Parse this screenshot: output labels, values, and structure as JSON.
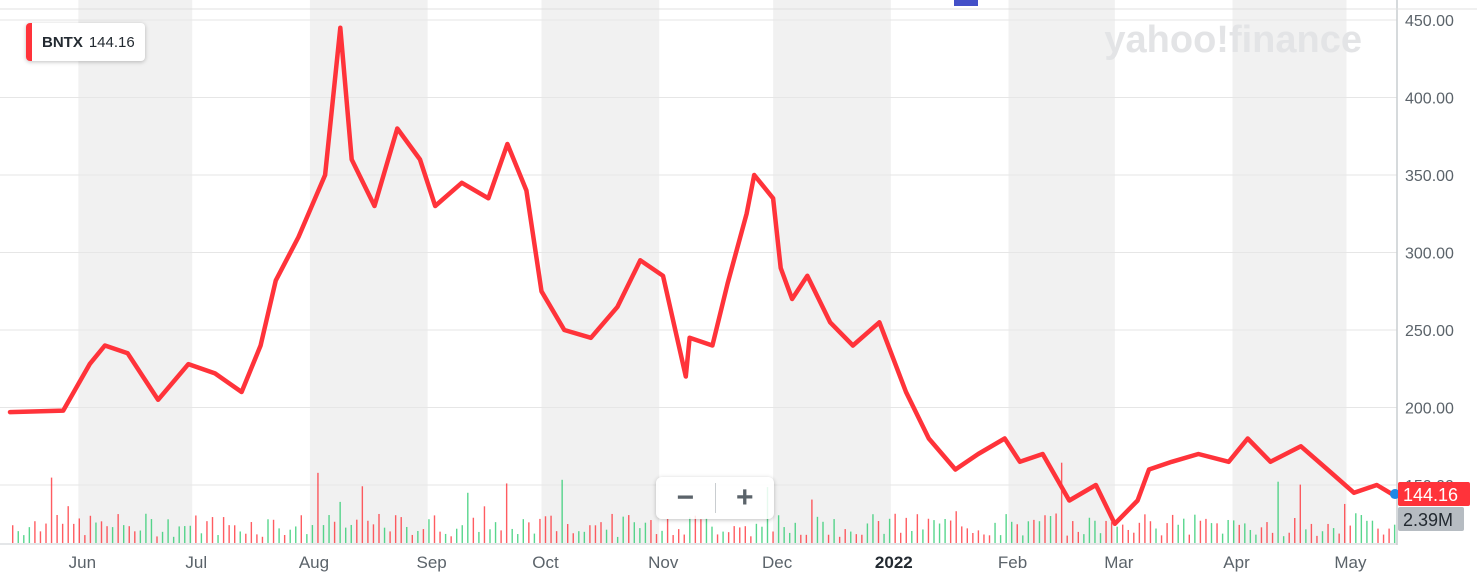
{
  "legend": {
    "ticker": "BNTX",
    "price": "144.16"
  },
  "watermark": "yahoo!finance",
  "zoom": {
    "minus": "−",
    "plus": "+"
  },
  "colors": {
    "line": "#ff333a",
    "up": "#2ecc71",
    "down": "#ff333a",
    "band": "#f1f1f1",
    "grid": "#e6e6e6"
  },
  "chart_data": {
    "type": "line",
    "series": [
      {
        "name": "BNTX"
      }
    ],
    "ylim": [
      100,
      450
    ],
    "y_ticks": [
      "450.00",
      "400.00",
      "350.00",
      "300.00",
      "250.00",
      "200.00",
      "150.00"
    ],
    "x_ticks": [
      "Jun",
      "Jul",
      "Aug",
      "Sep",
      "Oct",
      "Nov",
      "Dec",
      "2022",
      "Feb",
      "Mar",
      "Apr",
      "May"
    ],
    "last_price_label": "144.16",
    "volume_label": "2.39M",
    "x": [
      "2021-05-14",
      "2021-05-28",
      "2021-06-04",
      "2021-06-08",
      "2021-06-14",
      "2021-06-22",
      "2021-06-30",
      "2021-07-07",
      "2021-07-14",
      "2021-07-19",
      "2021-07-23",
      "2021-07-29",
      "2021-08-05",
      "2021-08-09",
      "2021-08-12",
      "2021-08-18",
      "2021-08-24",
      "2021-08-30",
      "2021-09-03",
      "2021-09-10",
      "2021-09-17",
      "2021-09-22",
      "2021-09-27",
      "2021-10-01",
      "2021-10-07",
      "2021-10-14",
      "2021-10-21",
      "2021-10-27",
      "2021-11-02",
      "2021-11-08",
      "2021-11-09",
      "2021-11-15",
      "2021-11-19",
      "2021-11-24",
      "2021-11-26",
      "2021-12-01",
      "2021-12-03",
      "2021-12-06",
      "2021-12-10",
      "2021-12-16",
      "2021-12-22",
      "2021-12-29",
      "2022-01-05",
      "2022-01-11",
      "2022-01-18",
      "2022-01-24",
      "2022-01-31",
      "2022-02-04",
      "2022-02-10",
      "2022-02-17",
      "2022-02-24",
      "2022-03-01",
      "2022-03-07",
      "2022-03-10",
      "2022-03-16",
      "2022-03-23",
      "2022-03-31",
      "2022-04-05",
      "2022-04-11",
      "2022-04-19",
      "2022-04-26",
      "2022-05-03",
      "2022-05-09",
      "2022-05-13"
    ],
    "values": [
      197,
      198,
      228,
      240,
      235,
      205,
      228,
      222,
      210,
      240,
      282,
      310,
      350,
      445,
      360,
      330,
      380,
      360,
      330,
      345,
      335,
      370,
      340,
      275,
      250,
      245,
      265,
      295,
      285,
      220,
      245,
      240,
      280,
      325,
      350,
      335,
      290,
      270,
      285,
      255,
      240,
      255,
      210,
      180,
      160,
      170,
      180,
      165,
      170,
      140,
      150,
      125,
      140,
      160,
      165,
      170,
      165,
      180,
      165,
      175,
      160,
      145,
      150,
      144.16
    ]
  }
}
